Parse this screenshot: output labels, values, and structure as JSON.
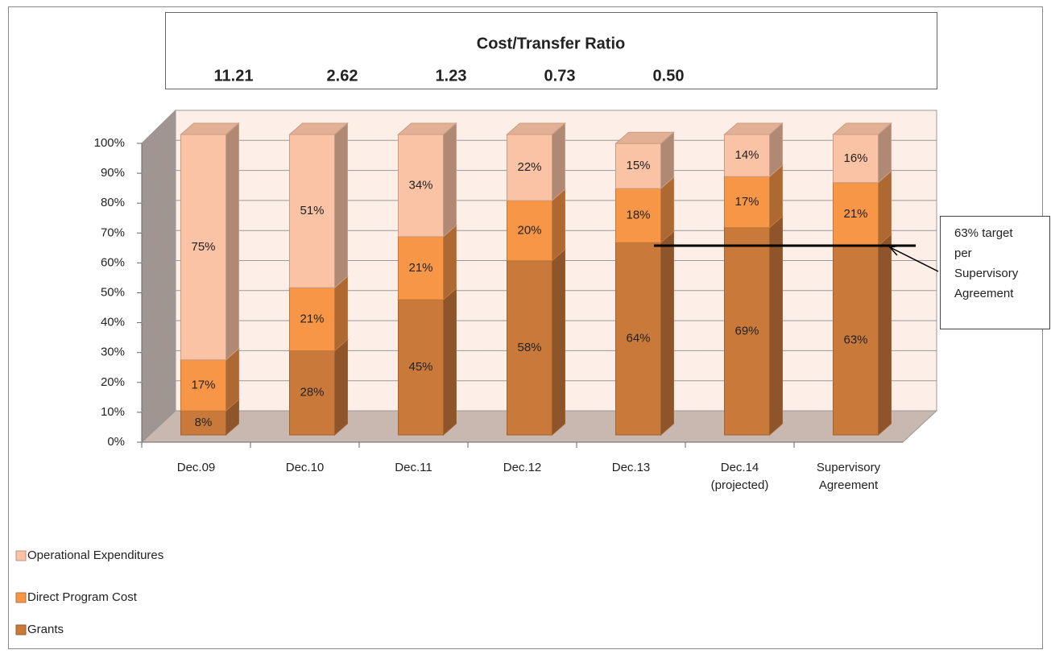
{
  "chart_data": {
    "type": "bar3d_stacked",
    "ratio_box": {
      "title": "Cost/Transfer Ratio",
      "values": [
        "11.21",
        "2.62",
        "1.23",
        "0.73",
        "0.50"
      ]
    },
    "categories": [
      "Dec.09",
      "Dec.10",
      "Dec.11",
      "Dec.12",
      "Dec.13",
      "Dec.14 (projected)",
      "Supervisory Agreement"
    ],
    "series": [
      {
        "name": "Grants",
        "color": "#c97a3b",
        "values": [
          8,
          28,
          45,
          58,
          64,
          69,
          63
        ],
        "value_labels": [
          "8%",
          "28%",
          "45%",
          "58%",
          "64%",
          "69%",
          "63%"
        ]
      },
      {
        "name": "Direct Program Cost",
        "color": "#f79646",
        "values": [
          17,
          21,
          21,
          20,
          18,
          17,
          21
        ],
        "value_labels": [
          "17%",
          "21%",
          "21%",
          "20%",
          "18%",
          "17%",
          "21%"
        ]
      },
      {
        "name": "Operational Expenditures",
        "color": "#fbc3a6",
        "values": [
          75,
          51,
          34,
          22,
          15,
          14,
          16
        ],
        "value_labels": [
          "75%",
          "51%",
          "34%",
          "22%",
          "15%",
          "14%",
          "16%"
        ]
      }
    ],
    "ylim": [
      0,
      100
    ],
    "yticks": [
      {
        "value": 0,
        "label": "0%"
      },
      {
        "value": 10,
        "label": "10%"
      },
      {
        "value": 20,
        "label": "20%"
      },
      {
        "value": 30,
        "label": "30%"
      },
      {
        "value": 40,
        "label": "40%"
      },
      {
        "value": 50,
        "label": "50%"
      },
      {
        "value": 60,
        "label": "60%"
      },
      {
        "value": 70,
        "label": "70%"
      },
      {
        "value": 80,
        "label": "80%"
      },
      {
        "value": 90,
        "label": "90%"
      },
      {
        "value": 100,
        "label": "100%"
      }
    ],
    "grid": true,
    "annotation": {
      "lines": [
        "63% target",
        "per",
        "Supervisory",
        "Agreement"
      ],
      "value": 63
    }
  }
}
